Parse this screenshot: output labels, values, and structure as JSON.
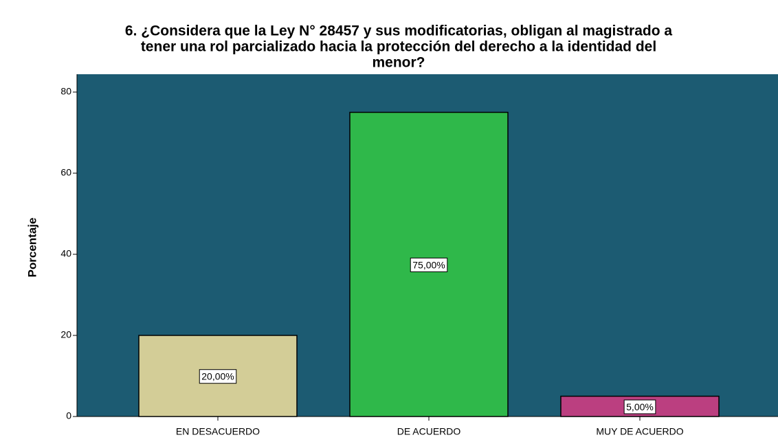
{
  "chart_data": {
    "type": "bar",
    "title": [
      "6. ¿Considera que la Ley N° 28457 y sus modificatorias, obligan al magistrado a",
      "tener una rol parcializado hacia la protección del derecho a la identidad del",
      "menor?"
    ],
    "y_label": "Porcentaje",
    "categories": [
      "EN DESACUERDO",
      "DE ACUERDO",
      "MUY DE ACUERDO"
    ],
    "values": [
      20,
      75,
      5
    ],
    "value_labels": [
      "20,00%",
      "75,00%",
      "5,00%"
    ],
    "colors": [
      "#d3cd97",
      "#2fb84a",
      "#bb3f80"
    ],
    "plot_background": "#1c5b72",
    "ylim": [
      0,
      84.4
    ],
    "yticks": [
      0,
      20,
      40,
      60,
      80
    ]
  }
}
